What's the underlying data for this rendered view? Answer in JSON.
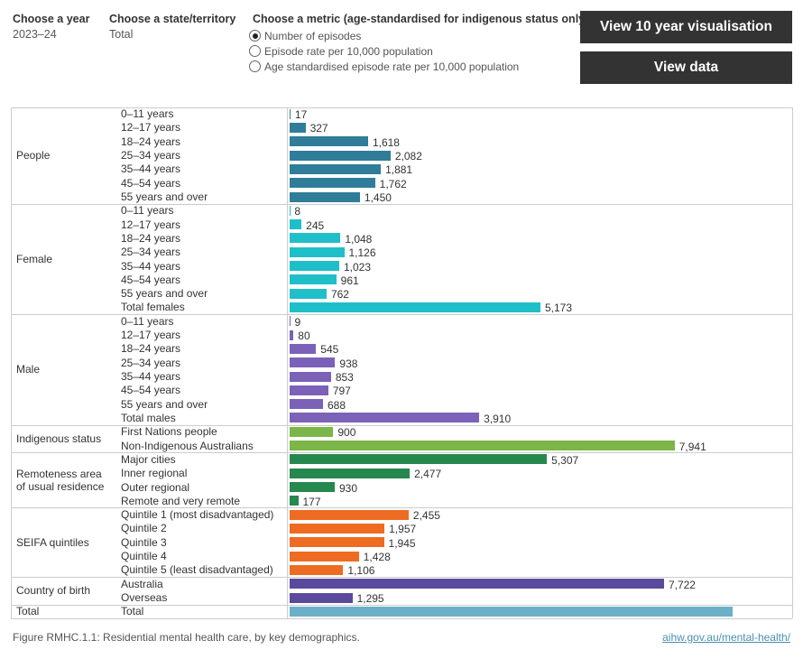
{
  "controls": {
    "year": {
      "label": "Choose a year",
      "value": "2023–24"
    },
    "state": {
      "label": "Choose a state/territory",
      "value": "Total"
    },
    "metric": {
      "label": "Choose a metric (age-standardised for indigenous status only)",
      "options": [
        "Number of episodes",
        "Episode rate per 10,000 population",
        "Age standardised episode rate per 10,000 population"
      ],
      "selected": 0
    },
    "buttons": [
      "View 10 year visualisation",
      "View data"
    ]
  },
  "chart_data": {
    "type": "bar",
    "orientation": "horizontal",
    "groups": [
      {
        "name": "People",
        "color": "#2f7d98",
        "categories": [
          "0–11 years",
          "12–17 years",
          "18–24 years",
          "25–34 years",
          "35–44 years",
          "45–54 years",
          "55 years and over"
        ],
        "values": [
          17,
          327,
          1618,
          2082,
          1881,
          1762,
          1450
        ],
        "value_labels": [
          "17",
          "327",
          "1,618",
          "2,082",
          "1,881",
          "1,762",
          "1,450"
        ]
      },
      {
        "name": "Female",
        "color": "#1fbfca",
        "categories": [
          "0–11 years",
          "12–17 years",
          "18–24 years",
          "25–34 years",
          "35–44 years",
          "45–54 years",
          "55 years and over",
          "Total females"
        ],
        "values": [
          8,
          245,
          1048,
          1126,
          1023,
          961,
          762,
          5173
        ],
        "value_labels": [
          "8",
          "245",
          "1,048",
          "1,126",
          "1,023",
          "961",
          "762",
          "5,173"
        ]
      },
      {
        "name": "Male",
        "color": "#7b62b8",
        "categories": [
          "0–11 years",
          "12–17 years",
          "18–24 years",
          "25–34 years",
          "35–44 years",
          "45–54 years",
          "55 years and over",
          "Total males"
        ],
        "values": [
          9,
          80,
          545,
          938,
          853,
          797,
          688,
          3910
        ],
        "value_labels": [
          "9",
          "80",
          "545",
          "938",
          "853",
          "797",
          "688",
          "3,910"
        ]
      },
      {
        "name": "Indigenous status",
        "color": "#7cb648",
        "categories": [
          "First Nations people",
          "Non-Indigenous Australians"
        ],
        "values": [
          900,
          7941
        ],
        "value_labels": [
          "900",
          "7,941"
        ]
      },
      {
        "name": "Remoteness area of usual residence",
        "color": "#26874f",
        "categories": [
          "Major cities",
          "Inner regional",
          "Outer regional",
          "Remote and very remote"
        ],
        "values": [
          5307,
          2477,
          930,
          177
        ],
        "value_labels": [
          "5,307",
          "2,477",
          "930",
          "177"
        ]
      },
      {
        "name": "SEIFA quintiles",
        "color": "#ee6b22",
        "categories": [
          "Quintile 1 (most disadvantaged)",
          "Quintile 2",
          "Quintile 3",
          "Quintile 4",
          "Quintile 5 (least disadvantaged)"
        ],
        "values": [
          2455,
          1957,
          1945,
          1428,
          1106
        ],
        "value_labels": [
          "2,455",
          "1,957",
          "1,945",
          "1,428",
          "1,106"
        ]
      },
      {
        "name": "Country of birth",
        "color": "#5a4a9c",
        "categories": [
          "Australia",
          "Overseas"
        ],
        "values": [
          7722,
          1295
        ],
        "value_labels": [
          "7,722",
          "1,295"
        ]
      },
      {
        "name": "Total",
        "color": "#6bb0c8",
        "categories": [
          "Total"
        ],
        "values": [
          9137
        ],
        "value_labels": [
          null
        ]
      }
    ]
  },
  "footer": {
    "caption": "Figure RMHC.1.1: Residential mental health care, by key demographics.",
    "link": "aihw.gov.au/mental-health/"
  }
}
